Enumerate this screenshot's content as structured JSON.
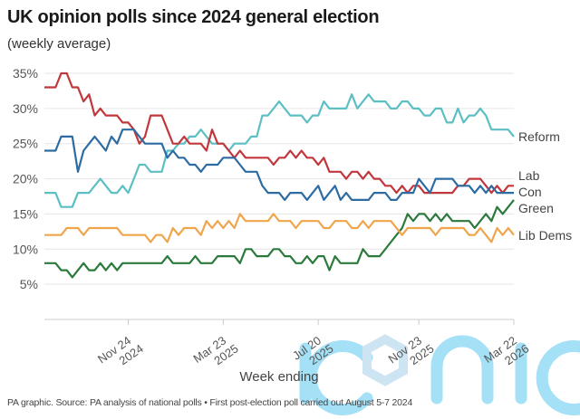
{
  "title": "UK opinion polls since 2024 general election",
  "subtitle": "(weekly average)",
  "source": "PA graphic. Source: PA analysis of national polls • First post-election poll carried out August 5-7 2024",
  "watermark": "iconic",
  "chart_data": {
    "type": "line",
    "title": "UK opinion polls since 2024 general election",
    "subtitle": "(weekly average)",
    "xlabel": "Week ending",
    "ylabel": "",
    "x_range": [
      "2024-08-11",
      "2026-03-22"
    ],
    "x_frequency": "weekly",
    "ylim": [
      0,
      35
    ],
    "yticks": [
      5,
      10,
      15,
      20,
      25,
      30,
      35
    ],
    "ytick_labels": [
      "5%",
      "10%",
      "15%",
      "20%",
      "25%",
      "30%",
      "35%"
    ],
    "xticks": [
      {
        "line1": "Nov 24",
        "line2": "2024",
        "date": "2024-11-24"
      },
      {
        "line1": "Mar 23",
        "line2": "2025",
        "date": "2025-03-23"
      },
      {
        "line1": "Jul 20",
        "line2": "2025",
        "date": "2025-07-20"
      },
      {
        "line1": "Nov 23",
        "line2": "2025",
        "date": "2025-11-23"
      },
      {
        "line1": "Mar 22",
        "line2": "2026",
        "date": "2026-03-22"
      }
    ],
    "grid": true,
    "legend": "end-of-line labels",
    "series": [
      {
        "name": "Reform",
        "color": "#5bbfc3",
        "values": [
          18,
          18,
          18,
          16,
          16,
          16,
          18,
          18,
          18,
          19,
          20,
          19,
          18,
          18,
          19,
          18,
          20,
          22,
          22,
          21,
          21,
          21,
          24,
          24,
          25,
          25,
          26,
          26,
          27,
          26,
          25,
          25,
          25,
          24,
          25,
          25,
          25,
          26,
          26,
          29,
          29,
          30,
          31,
          30,
          29,
          29,
          29,
          28,
          29,
          29,
          31,
          30,
          30,
          30,
          30,
          32,
          30,
          31,
          32,
          31,
          31,
          31,
          30,
          30,
          31,
          31,
          30,
          30,
          29,
          29,
          30,
          30,
          28,
          28,
          30,
          28,
          29,
          29,
          30,
          29,
          27,
          27,
          27,
          27,
          26
        ]
      },
      {
        "name": "Lab",
        "color": "#c1373c",
        "values": [
          33,
          33,
          33,
          35,
          35,
          33,
          33,
          31,
          32,
          29,
          30,
          29,
          29,
          29,
          28,
          28,
          27,
          25,
          26,
          29,
          29,
          29,
          27,
          25,
          25,
          26,
          25,
          25,
          25,
          24,
          27,
          25,
          25,
          24,
          23,
          24,
          23,
          23,
          23,
          23,
          23,
          22,
          23,
          23,
          24,
          23,
          24,
          23,
          23,
          22,
          23,
          21,
          21,
          21,
          20,
          21,
          21,
          20,
          21,
          20,
          20,
          19,
          19,
          18,
          19,
          18,
          19,
          19,
          18,
          18,
          18,
          18,
          18,
          18,
          19,
          19,
          20,
          20,
          20,
          19,
          18,
          19,
          18,
          19,
          19
        ]
      },
      {
        "name": "Con",
        "color": "#2c6ca3",
        "values": [
          24,
          24,
          24,
          26,
          26,
          26,
          21,
          24,
          25,
          26,
          25,
          24,
          26,
          25,
          27,
          27,
          27,
          26,
          25,
          25,
          25,
          25,
          23,
          24,
          23,
          23,
          22,
          22,
          21,
          22,
          22,
          22,
          23,
          23,
          23,
          22,
          21,
          21,
          21,
          19,
          18,
          18,
          18,
          17,
          18,
          18,
          18,
          17,
          18,
          19,
          17,
          18,
          19,
          17,
          18,
          17,
          17,
          17,
          17,
          18,
          18,
          18,
          17,
          17,
          18,
          18,
          18,
          20,
          19,
          18,
          20,
          20,
          20,
          20,
          19,
          19,
          19,
          18,
          19,
          18,
          19,
          18,
          18,
          18,
          18
        ]
      },
      {
        "name": "Green",
        "color": "#2b7a3b",
        "values": [
          8,
          8,
          8,
          7,
          7,
          6,
          7,
          8,
          7,
          7,
          8,
          7,
          8,
          7,
          8,
          8,
          8,
          8,
          8,
          8,
          8,
          8,
          9,
          8,
          8,
          8,
          8,
          9,
          8,
          8,
          8,
          9,
          9,
          9,
          9,
          8,
          10,
          10,
          9,
          9,
          9,
          10,
          10,
          9,
          9,
          8,
          8,
          9,
          8,
          9,
          9,
          7,
          9,
          8,
          8,
          8,
          8,
          10,
          9,
          9,
          9,
          10,
          11,
          12,
          13,
          15,
          14,
          15,
          15,
          14,
          15,
          14,
          15,
          14,
          14,
          14,
          14,
          13,
          14,
          15,
          14,
          16,
          15,
          16,
          17
        ]
      },
      {
        "name": "Lib Dems",
        "color": "#f0a54b",
        "values": [
          12,
          12,
          12,
          12,
          13,
          13,
          13,
          12,
          13,
          13,
          13,
          13,
          13,
          13,
          12,
          12,
          12,
          12,
          12,
          11,
          12,
          12,
          11,
          13,
          12,
          13,
          13,
          13,
          12,
          14,
          13,
          14,
          13,
          14,
          13,
          15,
          14,
          14,
          14,
          14,
          14,
          15,
          14,
          14,
          14,
          13,
          14,
          14,
          14,
          14,
          13,
          13,
          14,
          14,
          14,
          13,
          13,
          14,
          13,
          14,
          14,
          14,
          14,
          13,
          12,
          13,
          13,
          13,
          13,
          13,
          12,
          13,
          13,
          13,
          13,
          13,
          12,
          12,
          13,
          12,
          11,
          13,
          12,
          13,
          12
        ]
      }
    ]
  }
}
